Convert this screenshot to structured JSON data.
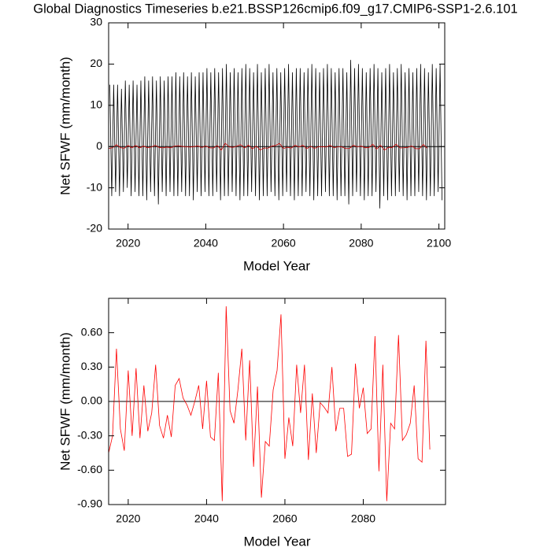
{
  "chart_data": [
    {
      "type": "line",
      "title": "Global Diagnostics Timeseries b.e21.BSSP126cmip6.f09_g17.CMIP6-SSP1-2.6.101",
      "xlabel": "Model Year",
      "ylabel": "Net SFWF (mm/month)",
      "xlim": [
        2015,
        2101.5
      ],
      "ylim": [
        -20,
        30
      ],
      "xticks": [
        2020,
        2040,
        2060,
        2080,
        2100
      ],
      "yticks": [
        -20,
        -10,
        0,
        10,
        20,
        30
      ],
      "zero_line": true,
      "series": [
        {
          "color": "#000000",
          "x": [
            2015.3,
            2015.8,
            2016.3,
            2016.8,
            2017.3,
            2017.8,
            2018.3,
            2018.8,
            2019.3,
            2019.8,
            2020.3,
            2020.8,
            2021.3,
            2021.8,
            2022.3,
            2022.8,
            2023.3,
            2023.8,
            2024.3,
            2024.8,
            2025.3,
            2025.8,
            2026.3,
            2026.8,
            2027.3,
            2027.8,
            2028.3,
            2028.8,
            2029.3,
            2029.8,
            2030.3,
            2030.8,
            2031.3,
            2031.8,
            2032.3,
            2032.8,
            2033.3,
            2033.8,
            2034.3,
            2034.8,
            2035.3,
            2035.8,
            2036.3,
            2036.8,
            2037.3,
            2037.8,
            2038.3,
            2038.8,
            2039.3,
            2039.8,
            2040.3,
            2040.8,
            2041.3,
            2041.8,
            2042.3,
            2042.8,
            2043.3,
            2043.8,
            2044.3,
            2044.8,
            2045.3,
            2045.8,
            2046.3,
            2046.8,
            2047.3,
            2047.8,
            2048.3,
            2048.8,
            2049.3,
            2049.8,
            2050.3,
            2050.8,
            2051.3,
            2051.8,
            2052.3,
            2052.8,
            2053.3,
            2053.8,
            2054.3,
            2054.8,
            2055.3,
            2055.8,
            2056.3,
            2056.8,
            2057.3,
            2057.8,
            2058.3,
            2058.8,
            2059.3,
            2059.8,
            2060.3,
            2060.8,
            2061.3,
            2061.8,
            2062.3,
            2062.8,
            2063.3,
            2063.8,
            2064.3,
            2064.8,
            2065.3,
            2065.8,
            2066.3,
            2066.8,
            2067.3,
            2067.8,
            2068.3,
            2068.8,
            2069.3,
            2069.8,
            2070.3,
            2070.8,
            2071.3,
            2071.8,
            2072.3,
            2072.8,
            2073.3,
            2073.8,
            2074.3,
            2074.8,
            2075.3,
            2075.8,
            2076.3,
            2076.8,
            2077.3,
            2077.8,
            2078.3,
            2078.8,
            2079.3,
            2079.8,
            2080.3,
            2080.8,
            2081.3,
            2081.8,
            2082.3,
            2082.8,
            2083.3,
            2083.8,
            2084.3,
            2084.8,
            2085.3,
            2085.8,
            2086.3,
            2086.8,
            2087.3,
            2087.8,
            2088.3,
            2088.8,
            2089.3,
            2089.8,
            2090.3,
            2090.8,
            2091.3,
            2091.8,
            2092.3,
            2092.8,
            2093.3,
            2093.8,
            2094.3,
            2094.8,
            2095.3,
            2095.8,
            2096.3,
            2096.8,
            2097.3,
            2097.8,
            2098.3,
            2098.8,
            2099.3,
            2099.8,
            2100.3,
            2100.8
          ],
          "values": [
            15,
            -12,
            15,
            -11,
            15,
            -12,
            14,
            -11,
            16,
            -10,
            15,
            -12,
            16,
            -11,
            15,
            -12,
            16,
            -12,
            17,
            -13,
            16,
            -11,
            17,
            -12,
            16,
            -14,
            17,
            -11,
            16,
            -12,
            17,
            -11,
            17,
            -12,
            18,
            -12,
            17,
            -11,
            18,
            -12,
            17,
            -12,
            18,
            -13,
            17,
            -11,
            18,
            -12,
            18,
            -11,
            19,
            -12,
            18,
            -12,
            19,
            -11,
            18,
            -13,
            19,
            -12,
            20,
            -12,
            18,
            -11,
            19,
            -12,
            18,
            -13,
            19,
            -12,
            20,
            -12,
            19,
            -11,
            18,
            -12,
            20,
            -13,
            18,
            -12,
            19,
            -12,
            20,
            -11,
            18,
            -12,
            19,
            -13,
            18,
            -12,
            19,
            -11,
            20,
            -12,
            18,
            -13,
            19,
            -12,
            19,
            -12,
            18,
            -11,
            19,
            -12,
            20,
            -13,
            19,
            -12,
            18,
            -12,
            19,
            -11,
            20,
            -12,
            19,
            -12,
            18,
            -13,
            19,
            -12,
            19,
            -12,
            18,
            -14,
            21,
            -12,
            19,
            -11,
            20,
            -12,
            19,
            -13,
            18,
            -12,
            19,
            -12,
            20,
            -11,
            19,
            -15,
            18,
            -12,
            19,
            -13,
            20,
            -12,
            18,
            -12,
            19,
            -11,
            20,
            -12,
            18,
            -13,
            19,
            -12,
            18,
            -12,
            19,
            -11,
            20,
            -12,
            19,
            -13,
            18,
            -12,
            20,
            -12,
            19,
            -11,
            20,
            -13
          ]
        },
        {
          "color": "#cc0000",
          "x": [
            2015,
            2016,
            2017,
            2018,
            2019,
            2020,
            2021,
            2022,
            2023,
            2024,
            2025,
            2026,
            2027,
            2028,
            2029,
            2030,
            2031,
            2032,
            2033,
            2034,
            2035,
            2036,
            2037,
            2038,
            2039,
            2040,
            2041,
            2042,
            2043,
            2044,
            2045,
            2046,
            2047,
            2048,
            2049,
            2050,
            2051,
            2052,
            2053,
            2054,
            2055,
            2056,
            2057,
            2058,
            2059,
            2060,
            2061,
            2062,
            2063,
            2064,
            2065,
            2066,
            2067,
            2068,
            2069,
            2070,
            2071,
            2072,
            2073,
            2074,
            2075,
            2076,
            2077,
            2078,
            2079,
            2080,
            2081,
            2082,
            2083,
            2084,
            2085,
            2086,
            2087,
            2088,
            2089,
            2090,
            2091,
            2092,
            2093,
            2094,
            2095,
            2096,
            2097
          ],
          "values": [
            -0.45,
            -0.3,
            0.46,
            -0.24,
            -0.43,
            0.27,
            -0.3,
            0.29,
            -0.32,
            0.14,
            -0.26,
            -0.1,
            0.32,
            -0.21,
            -0.32,
            -0.12,
            -0.31,
            0.14,
            0.2,
            0.03,
            -0.03,
            -0.12,
            0.0,
            0.14,
            -0.24,
            0.18,
            -0.31,
            -0.34,
            0.25,
            -0.87,
            0.83,
            -0.08,
            -0.19,
            0.1,
            0.46,
            -0.34,
            0.36,
            -0.57,
            0.13,
            -0.84,
            -0.35,
            -0.39,
            0.1,
            0.27,
            0.76,
            -0.5,
            -0.14,
            -0.39,
            0.32,
            -0.1,
            0.32,
            -0.51,
            0.07,
            -0.45,
            -0.01,
            -0.05,
            -0.1,
            0.3,
            -0.26,
            -0.06,
            -0.06,
            -0.48,
            -0.46,
            0.33,
            -0.06,
            0.12,
            -0.28,
            -0.24,
            0.57,
            -0.61,
            0.32,
            -0.87,
            -0.19,
            -0.24,
            0.58,
            -0.34,
            -0.29,
            -0.19,
            0.14,
            -0.5,
            -0.53,
            0.53,
            -0.42
          ]
        }
      ]
    },
    {
      "type": "line",
      "xlabel": "Model Year",
      "ylabel": "Net SFWF (mm/month)",
      "xlim": [
        2015,
        2101
      ],
      "ylim": [
        -0.9,
        0.9
      ],
      "xticks": [
        2020,
        2040,
        2060,
        2080
      ],
      "yticks": [
        {
          "value": -0.9,
          "label": "-0.90"
        },
        {
          "value": -0.6,
          "label": "-0.60"
        },
        {
          "value": -0.3,
          "label": "-0.30"
        },
        {
          "value": 0,
          "label": "0.00"
        },
        {
          "value": 0.3,
          "label": "0.30"
        },
        {
          "value": 0.6,
          "label": "0.60"
        }
      ],
      "zero_line": true,
      "series": [
        {
          "color": "#ff0000",
          "x": [
            2015,
            2016,
            2017,
            2018,
            2019,
            2020,
            2021,
            2022,
            2023,
            2024,
            2025,
            2026,
            2027,
            2028,
            2029,
            2030,
            2031,
            2032,
            2033,
            2034,
            2035,
            2036,
            2037,
            2038,
            2039,
            2040,
            2041,
            2042,
            2043,
            2044,
            2045,
            2046,
            2047,
            2048,
            2049,
            2050,
            2051,
            2052,
            2053,
            2054,
            2055,
            2056,
            2057,
            2058,
            2059,
            2060,
            2061,
            2062,
            2063,
            2064,
            2065,
            2066,
            2067,
            2068,
            2069,
            2070,
            2071,
            2072,
            2073,
            2074,
            2075,
            2076,
            2077,
            2078,
            2079,
            2080,
            2081,
            2082,
            2083,
            2084,
            2085,
            2086,
            2087,
            2088,
            2089,
            2090,
            2091,
            2092,
            2093,
            2094,
            2095,
            2096,
            2097
          ],
          "values": [
            -0.45,
            -0.3,
            0.46,
            -0.24,
            -0.43,
            0.27,
            -0.3,
            0.29,
            -0.32,
            0.14,
            -0.26,
            -0.1,
            0.32,
            -0.21,
            -0.32,
            -0.12,
            -0.31,
            0.14,
            0.2,
            0.03,
            -0.03,
            -0.12,
            0.0,
            0.14,
            -0.24,
            0.18,
            -0.31,
            -0.34,
            0.25,
            -0.87,
            0.83,
            -0.08,
            -0.19,
            0.1,
            0.46,
            -0.34,
            0.36,
            -0.57,
            0.13,
            -0.84,
            -0.35,
            -0.39,
            0.1,
            0.27,
            0.76,
            -0.5,
            -0.14,
            -0.39,
            0.32,
            -0.1,
            0.32,
            -0.51,
            0.07,
            -0.45,
            -0.01,
            -0.05,
            -0.1,
            0.3,
            -0.26,
            -0.06,
            -0.06,
            -0.48,
            -0.46,
            0.33,
            -0.06,
            0.12,
            -0.28,
            -0.24,
            0.57,
            -0.61,
            0.32,
            -0.87,
            -0.19,
            -0.24,
            0.58,
            -0.34,
            -0.29,
            -0.19,
            0.14,
            -0.5,
            -0.53,
            0.53,
            -0.42
          ]
        }
      ]
    }
  ]
}
